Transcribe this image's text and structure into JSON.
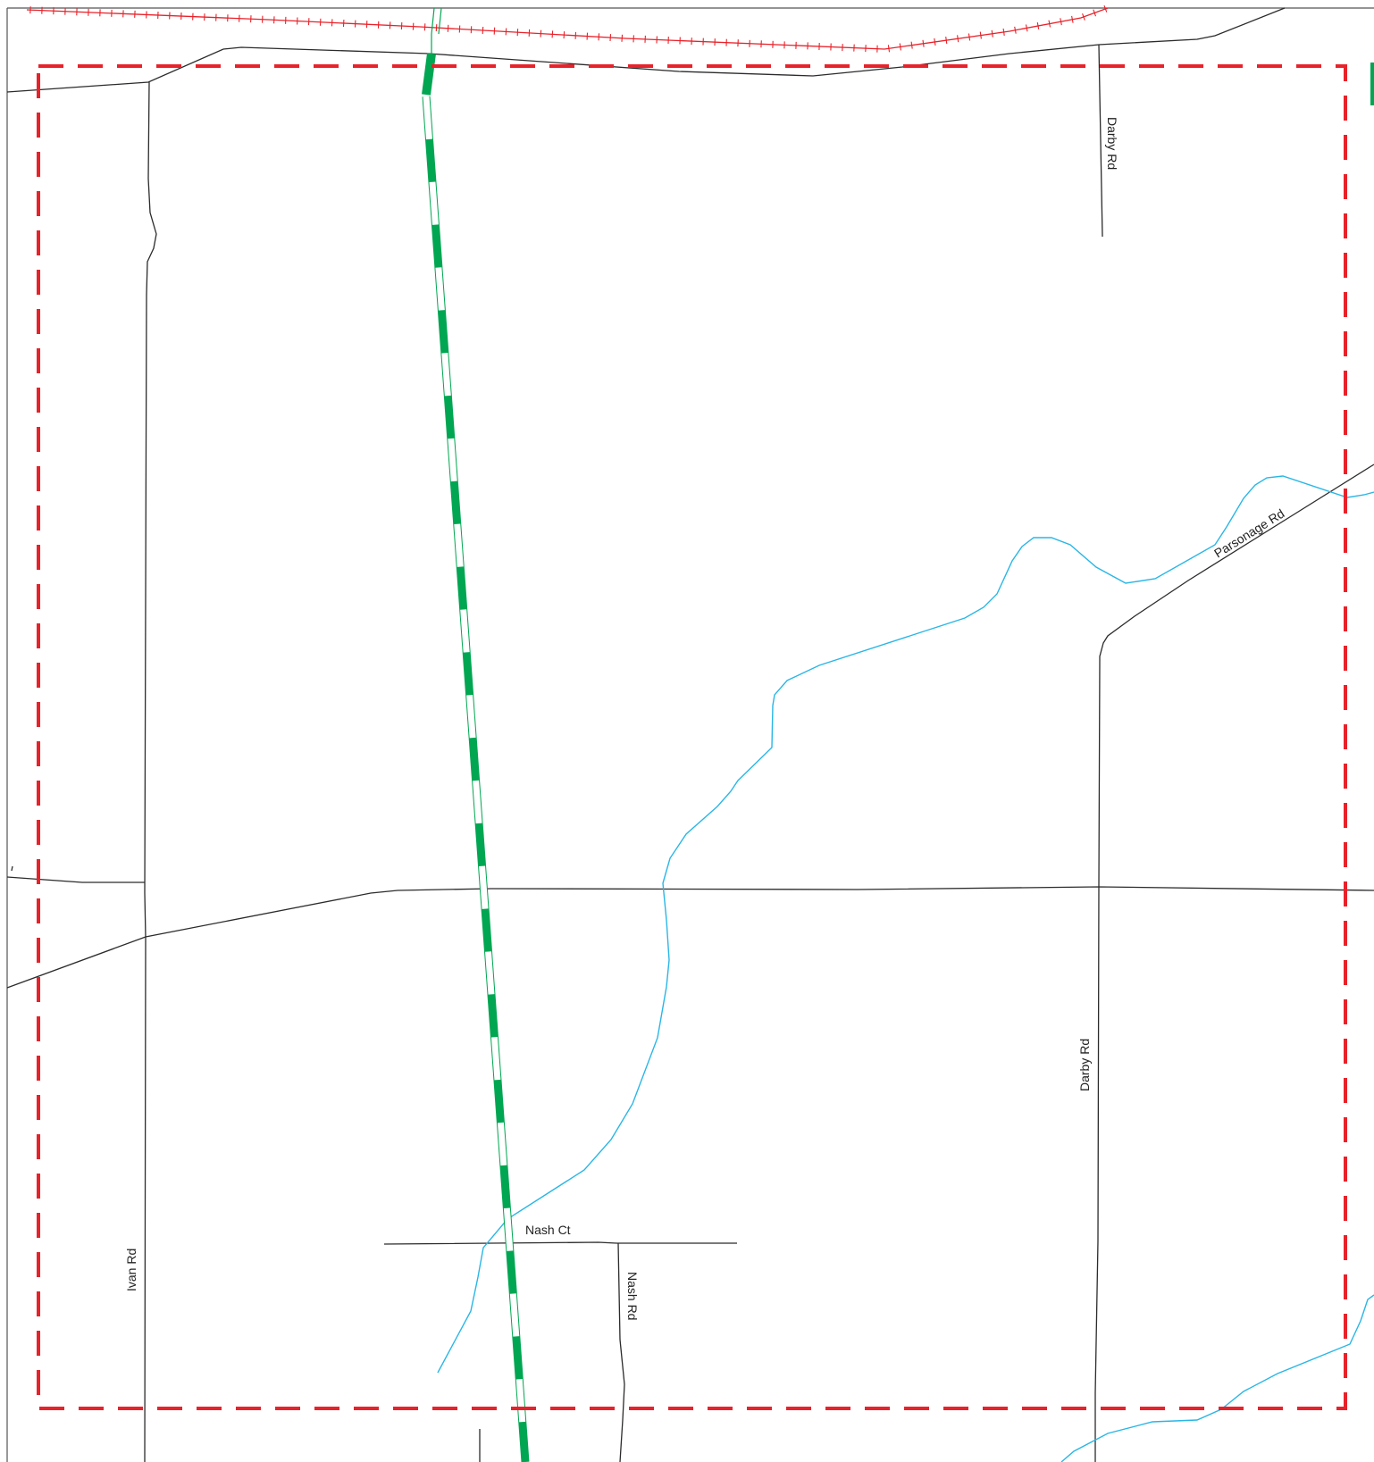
{
  "map": {
    "colors": {
      "background": "#ffffff",
      "road": "#2b2b2b",
      "stream": "#29b6e6",
      "trail": "#00a651",
      "railroad": "#e8222a",
      "boundary": "#e8222a",
      "frame": "#555555"
    },
    "labels": {
      "darby_rd_north": "Darby Rd",
      "parsonage_rd": "Parsonage Rd",
      "darby_rd_south": "Darby Rd",
      "nash_ct": "Nash Ct",
      "nash_rd": "Nash Rd",
      "ivan_rd": "Ivan Rd"
    }
  }
}
